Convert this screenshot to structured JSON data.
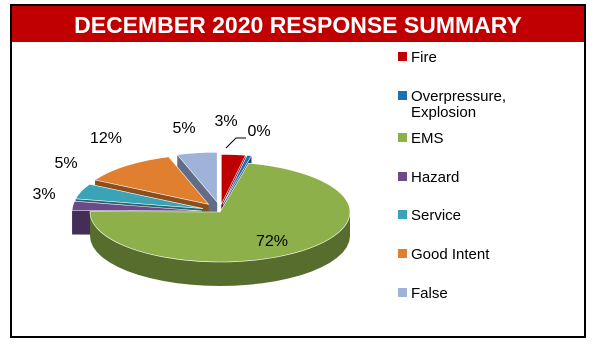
{
  "chart_data": {
    "type": "pie",
    "title": "DECEMBER 2020 RESPONSE SUMMARY",
    "legend_position": "right",
    "slices": [
      {
        "name": "Fire",
        "value": 3,
        "label": "3%",
        "color": "#c00000"
      },
      {
        "name": "Overpressure, Explosion",
        "value": 0,
        "label": "0%",
        "color": "#1f6fb5"
      },
      {
        "name": "EMS",
        "value": 72,
        "label": "72%",
        "color": "#8db04a"
      },
      {
        "name": "Hazard",
        "value": 3,
        "label": "3%",
        "color": "#6b4a8a"
      },
      {
        "name": "Service",
        "value": 5,
        "label": "5%",
        "color": "#3aa3b5"
      },
      {
        "name": "Good Intent",
        "value": 12,
        "label": "12%",
        "color": "#e07f30"
      },
      {
        "name": "False",
        "value": 5,
        "label": "5%",
        "color": "#9fb2d8"
      }
    ],
    "legend": [
      {
        "lines": [
          "Fire"
        ],
        "color": "#c00000"
      },
      {
        "lines": [
          "Overpressure,",
          "Explosion"
        ],
        "color": "#1f6fb5"
      },
      {
        "lines": [
          "EMS"
        ],
        "color": "#8db04a"
      },
      {
        "lines": [
          "Hazard"
        ],
        "color": "#6b4a8a"
      },
      {
        "lines": [
          "Service"
        ],
        "color": "#3aa3b5"
      },
      {
        "lines": [
          "Good Intent"
        ],
        "color": "#e07f30"
      },
      {
        "lines": [
          "False"
        ],
        "color": "#9fb2d8"
      }
    ]
  }
}
